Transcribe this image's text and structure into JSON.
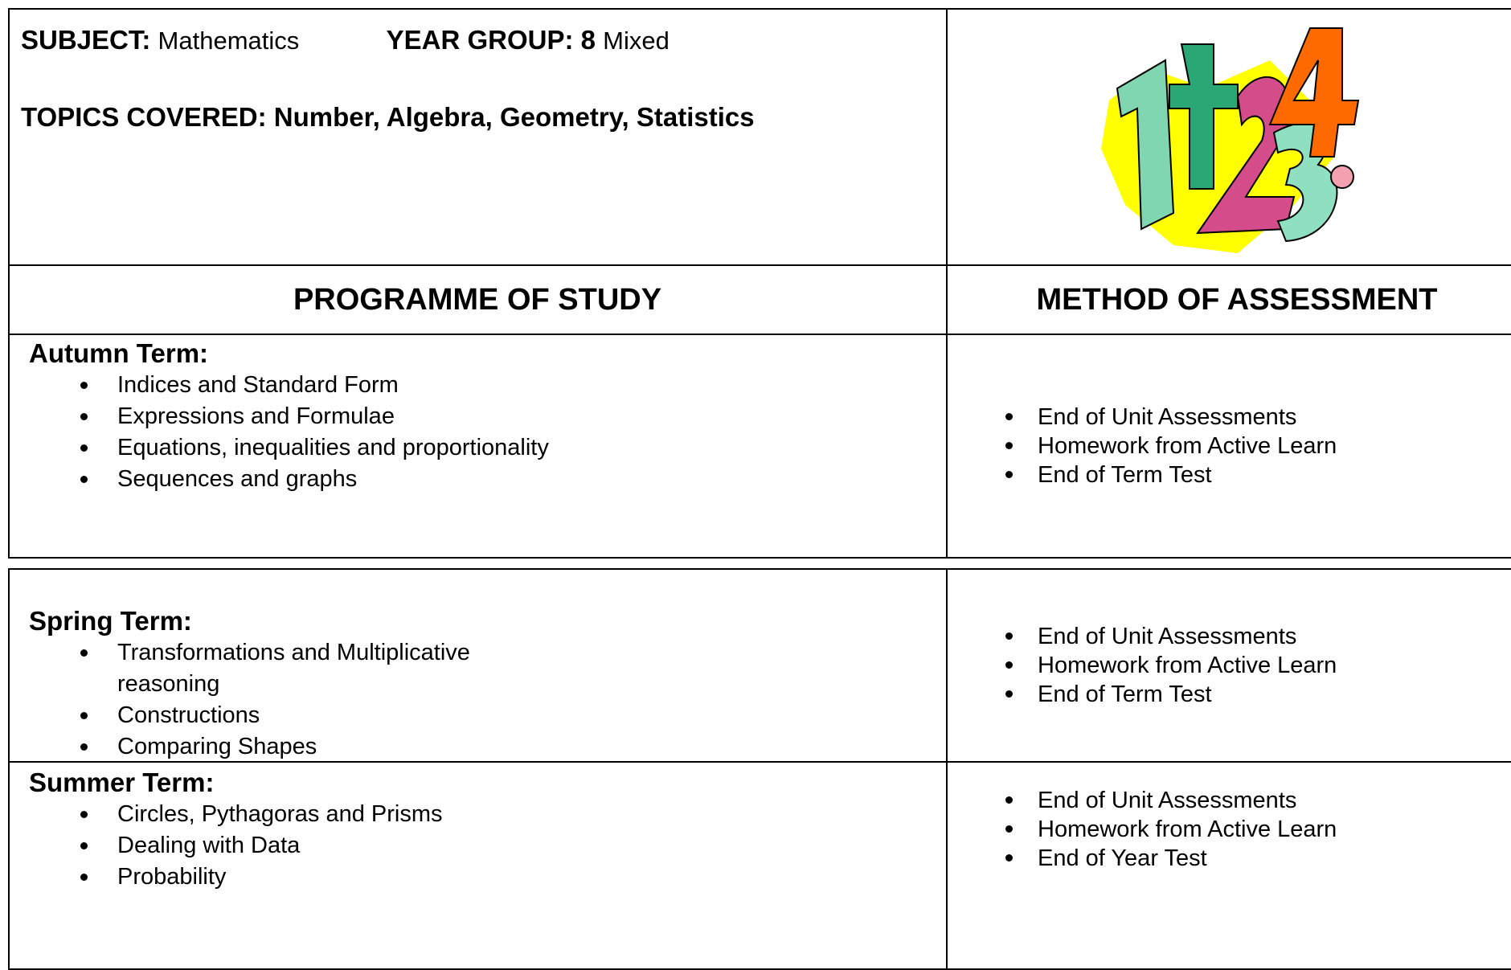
{
  "header": {
    "subject_label": "SUBJECT:",
    "subject": "Mathematics",
    "year_label": "YEAR GROUP:",
    "year": "8",
    "year_suffix": "Mixed",
    "topics": "TOPICS COVERED: Number, Algebra, Geometry, Statistics"
  },
  "columns": [
    "PROGRAMME OF STUDY",
    "METHOD OF ASSESSMENT"
  ],
  "terms": [
    {
      "title": "Autumn Term:",
      "topics": [
        "Indices and Standard Form",
        "Expressions and Formulae",
        "Equations, inequalities and proportionality",
        "Sequences and graphs"
      ],
      "assessments": [
        "End of Unit Assessments",
        "Homework from Active Learn",
        "End of Term Test"
      ]
    },
    {
      "title": "Spring Term:",
      "topics": [
        "Transformations and Multiplicative reasoning",
        "Constructions",
        "Comparing Shapes"
      ],
      "assessments": [
        "End of Unit Assessments",
        "Homework from Active Learn",
        "End of Term Test"
      ]
    },
    {
      "title": "Summer Term:",
      "topics": [
        "Circles, Pythagoras and Prisms",
        "Dealing with Data",
        "Probability"
      ],
      "assessments": [
        "End of Unit Assessments",
        "Homework from Active Learn",
        "End of Year Test"
      ]
    }
  ]
}
